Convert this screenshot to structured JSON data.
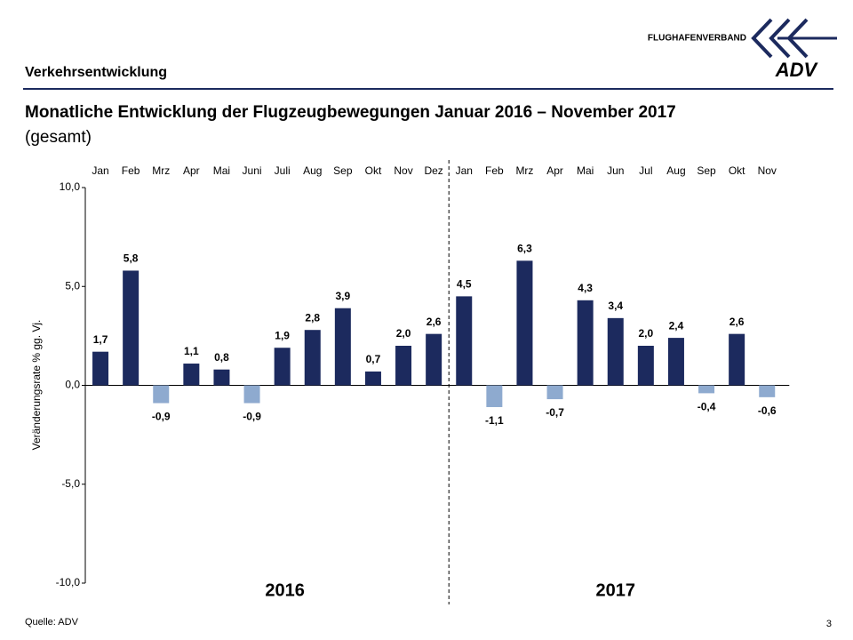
{
  "header": {
    "section": "Verkehrsentwicklung",
    "logo_text": "FLUGHAFENVERBAND",
    "logo_mark": "ADV"
  },
  "chart_data": {
    "type": "bar",
    "title": "Monatliche Entwicklung der Flugzeugbewegungen Januar 2016 – November 2017",
    "subtitle": "(gesamt)",
    "y_label": "Veränderungsrate % gg. Vj.",
    "groups": [
      "2016",
      "2017"
    ],
    "categories": [
      "Jan",
      "Feb",
      "Mrz",
      "Apr",
      "Mai",
      "Juni",
      "Juli",
      "Aug",
      "Sep",
      "Okt",
      "Nov",
      "Dez",
      "Jan",
      "Feb",
      "Mrz",
      "Apr",
      "Mai",
      "Jun",
      "Jul",
      "Aug",
      "Sep",
      "Okt",
      "Nov"
    ],
    "values": [
      1.7,
      5.8,
      -0.9,
      1.1,
      0.8,
      -0.9,
      1.9,
      2.8,
      3.9,
      0.7,
      2.0,
      2.6,
      4.5,
      -1.1,
      6.3,
      -0.7,
      4.3,
      3.4,
      2.0,
      2.4,
      -0.4,
      2.6,
      -0.6
    ],
    "value_labels": [
      "1,7",
      "5,8",
      "-0,9",
      "1,1",
      "0,8",
      "-0,9",
      "1,9",
      "2,8",
      "3,9",
      "0,7",
      "2,0",
      "2,6",
      "4,5",
      "-1,1",
      "6,3",
      "-0,7",
      "4,3",
      "3,4",
      "2,0",
      "2,4",
      "-0,4",
      "2,6",
      "-0,6"
    ],
    "color": "#1c2a5e",
    "negative_color": "#8eaacf",
    "ylim": [
      -10,
      10
    ],
    "yticks": [
      {
        "value": -10,
        "label": "-10,0"
      },
      {
        "value": -5,
        "label": "-5,0"
      },
      {
        "value": 0,
        "label": "0,0"
      },
      {
        "value": 5,
        "label": "5,0"
      },
      {
        "value": 10,
        "label": "10,0"
      }
    ],
    "grid": false
  },
  "footer": {
    "source": "Quelle: ADV",
    "page": "3"
  }
}
